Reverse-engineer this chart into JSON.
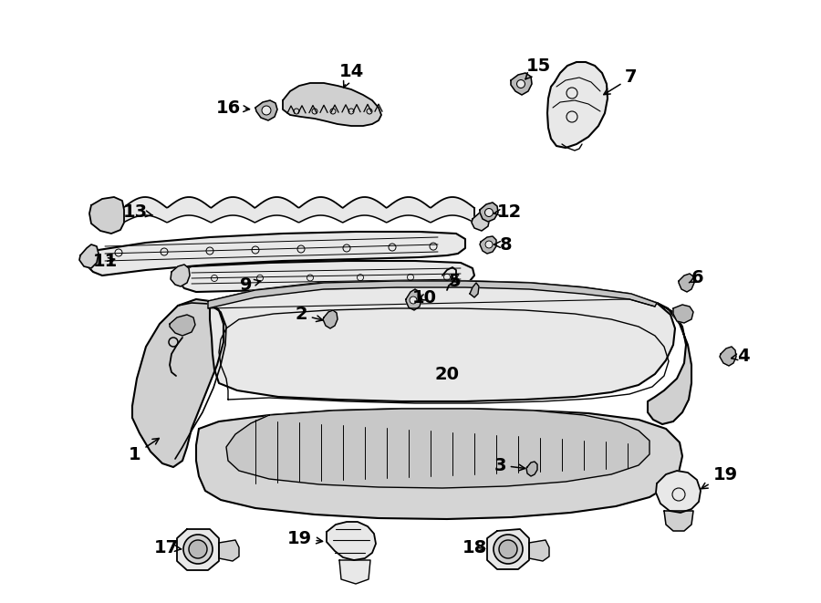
{
  "bg_color": "#ffffff",
  "fig_width": 9.0,
  "fig_height": 6.61,
  "dpi": 100,
  "label_fontsize": 14,
  "label_color": "#000000",
  "line_color": "#000000",
  "fill_light": "#e8e8e8",
  "fill_mid": "#d0d0d0",
  "fill_dark": "#b8b8b8"
}
